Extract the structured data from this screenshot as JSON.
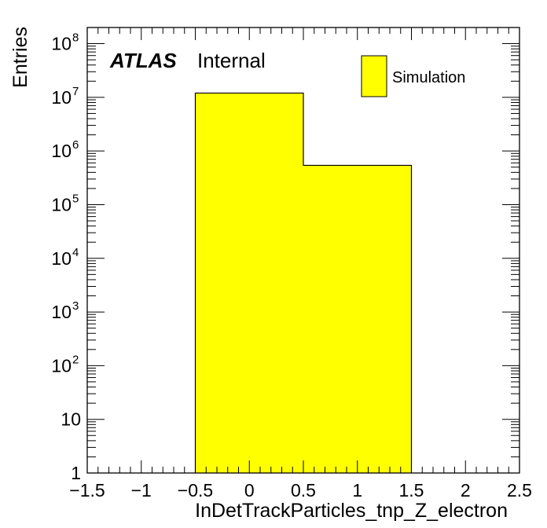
{
  "chart_data": {
    "type": "bar",
    "histogram": true,
    "xlabel": "InDetTrackParticles_tnp_Z_electron",
    "ylabel": "Entries",
    "xlim": [
      -1.5,
      2.5
    ],
    "ylim": [
      1,
      200000000
    ],
    "yscale": "log",
    "x_ticks": [
      -1.5,
      -1,
      -0.5,
      0,
      0.5,
      1,
      1.5,
      2,
      2.5
    ],
    "x_tick_labels": [
      "−1.5",
      "−1",
      "−0.5",
      "0",
      "0.5",
      "1",
      "1.5",
      "2",
      "2.5"
    ],
    "y_ticks": [
      {
        "value": 1,
        "base": "1",
        "exp": ""
      },
      {
        "value": 10,
        "base": "10",
        "exp": ""
      },
      {
        "value": 100,
        "base": "10",
        "exp": "2"
      },
      {
        "value": 1000,
        "base": "10",
        "exp": "3"
      },
      {
        "value": 10000,
        "base": "10",
        "exp": "4"
      },
      {
        "value": 100000,
        "base": "10",
        "exp": "5"
      },
      {
        "value": 1000000,
        "base": "10",
        "exp": "6"
      },
      {
        "value": 10000000,
        "base": "10",
        "exp": "7"
      },
      {
        "value": 100000000,
        "base": "10",
        "exp": "8"
      }
    ],
    "bins": [
      {
        "low": -0.5,
        "high": 0.5,
        "value": 12000000
      },
      {
        "low": 0.5,
        "high": 1.5,
        "value": 540000
      }
    ],
    "series": [
      {
        "name": "Simulation",
        "color": "#ffff00"
      }
    ],
    "legend": {
      "position": "top-right"
    },
    "grid": false
  },
  "label": {
    "experiment": "ATLAS",
    "status": "Internal"
  },
  "colors": {
    "fill": "#ffff00",
    "line": "#000000",
    "background": "#ffffff"
  }
}
